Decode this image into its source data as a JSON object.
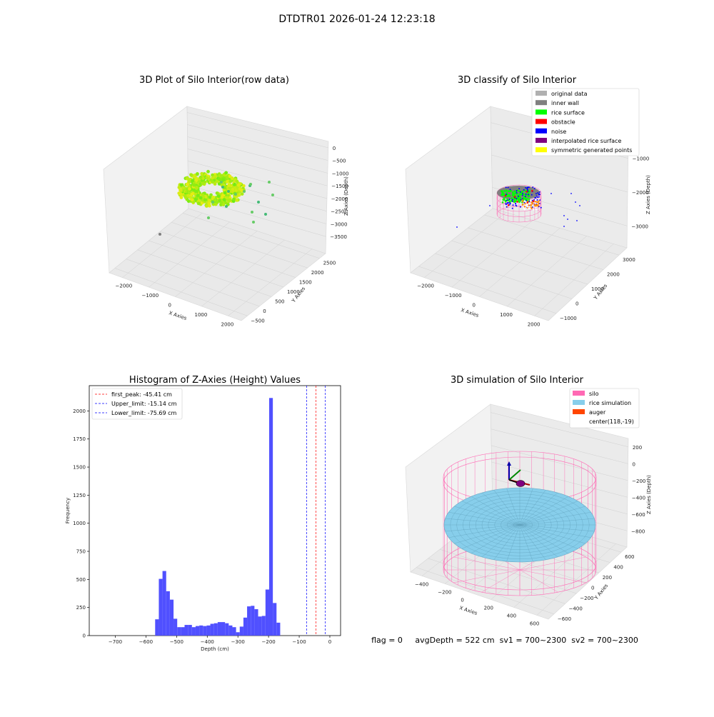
{
  "suptitle": "DTDTR01 2026-01-24 12:23:18",
  "colors": {
    "silo": "#ff69b4",
    "rice_sim": "#87ceeb",
    "auger": "#ff4500",
    "original": "#b0b0b0",
    "inner_wall": "#808080",
    "rice_surface": "#00ff00",
    "obstacle": "#ff0000",
    "noise": "#0000ff",
    "interp": "#800080",
    "symmetric": "#ffff00",
    "hist_bar": "#5050ff"
  },
  "chart_data": [
    {
      "type": "scatter3d",
      "title": "3D Plot of Silo Interior(row data)",
      "xlabel": "X Axies",
      "ylabel": "Y Axies",
      "zlabel": "Z Axies (Depth)",
      "xticks": [
        "−2000",
        "−1000",
        "0",
        "1000",
        "2000"
      ],
      "yticks": [
        "−500",
        "0",
        "500",
        "1000",
        "1500",
        "2000",
        "2500"
      ],
      "zticks": [
        "0",
        "−500",
        "−1000",
        "−1500",
        "−2000",
        "−2500",
        "−3000",
        "−3500"
      ],
      "xlim": [
        -2500,
        2200
      ],
      "ylim": [
        -600,
        2600
      ],
      "zlim": [
        -3700,
        200
      ]
    },
    {
      "type": "scatter3d",
      "title": "3D classify of Silo Interior",
      "xlabel": "X Axies",
      "ylabel": "Y Axies",
      "zlabel": "Z Axies (Depth)",
      "xticks": [
        "−2000",
        "−1000",
        "0",
        "1000",
        "2000"
      ],
      "yticks": [
        "−1000",
        "0",
        "1000",
        "2000",
        "3000"
      ],
      "zticks": [
        "−1000",
        "−2000",
        "−3000"
      ],
      "legend": [
        "original data",
        "inner wall",
        "rice surface",
        "obstacle",
        "noise",
        "interpolated rice surface",
        "symmetric generated points"
      ],
      "legend_position": "top-right"
    },
    {
      "type": "bar",
      "title": "Histogram of Z-Axies (Height) Values",
      "xlabel": "Depth (cm)",
      "ylabel": "Frequency",
      "xlim": [
        -785,
        35
      ],
      "ylim": [
        0,
        2225
      ],
      "xticks": [
        -700,
        -600,
        -500,
        -400,
        -300,
        -200,
        -100,
        0
      ],
      "yticks": [
        0,
        250,
        500,
        750,
        1000,
        1250,
        1500,
        1750,
        2000
      ],
      "bin_width": 12,
      "bin_edges_start": -570,
      "values": [
        145,
        505,
        575,
        395,
        320,
        150,
        75,
        75,
        95,
        95,
        75,
        85,
        90,
        85,
        90,
        105,
        110,
        120,
        120,
        110,
        90,
        75,
        30,
        80,
        160,
        260,
        265,
        235,
        170,
        175,
        410,
        2115,
        290,
        115
      ],
      "lines": [
        {
          "label": "first_peak: -45.41 cm",
          "x": -45.41,
          "color": "#ff0000"
        },
        {
          "label": "Upper_limit: -15.14 cm",
          "x": -15.14,
          "color": "#0000ff"
        },
        {
          "label": "Lower_limit: -75.69 cm",
          "x": -75.69,
          "color": "#0000ff"
        }
      ],
      "legend_position": "top-left"
    },
    {
      "type": "surface3d",
      "title": "3D simulation of Silo Interior",
      "xlabel": "X Axies",
      "ylabel": "Y Axies",
      "zlabel": "Z Axies (Depth)",
      "xticks": [
        "−400",
        "−200",
        "0",
        "200",
        "400",
        "600"
      ],
      "yticks": [
        "−600",
        "−400",
        "−200",
        "0",
        "200",
        "400",
        "600"
      ],
      "zticks": [
        "200",
        "0",
        "−200",
        "−400",
        "−600",
        "−800"
      ],
      "legend": [
        "silo",
        "rice simulation",
        "auger",
        "center(118,-19)"
      ],
      "legend_position": "top-right"
    }
  ],
  "footer": "flag = 0     avgDepth = 522 cm  sv1 = 700~2300  sv2 = 700~2300"
}
